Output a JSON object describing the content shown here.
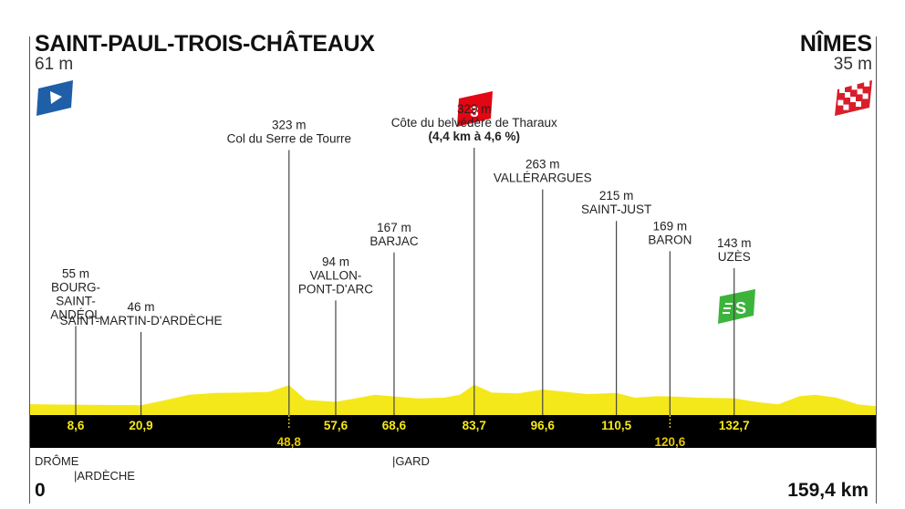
{
  "start": {
    "name": "SAINT-PAUL-TROIS-CHÂTEAUX",
    "altitude": "61 m"
  },
  "finish": {
    "name": "NÎMES",
    "altitude": "35 m"
  },
  "distance_start": "0",
  "distance_total": "159,4 km",
  "departments": [
    {
      "name": "DRÔME",
      "km": 0
    },
    {
      "name": "|ARDÈCHE",
      "km": 8.6
    },
    {
      "name": "|GARD",
      "km": 68.6
    }
  ],
  "colors": {
    "profile": "#f4e81b",
    "band": "#000000",
    "climb_badge": "#e30613",
    "sprint_badge": "#3cb43c",
    "start_flag": "#1f5fa8"
  },
  "icons": [
    "start-flag-icon",
    "finish-flag-icon",
    "climb-category-3-icon",
    "sprint-icon"
  ],
  "chart_data": {
    "type": "area",
    "total_km": 159.4,
    "x_unit": "km",
    "profile": [
      [
        0,
        61
      ],
      [
        8.6,
        55
      ],
      [
        15,
        50
      ],
      [
        20.9,
        46
      ],
      [
        25,
        110
      ],
      [
        30,
        190
      ],
      [
        35,
        215
      ],
      [
        40,
        220
      ],
      [
        45,
        230
      ],
      [
        48.8,
        323
      ],
      [
        52,
        120
      ],
      [
        57.6,
        94
      ],
      [
        62,
        150
      ],
      [
        65,
        190
      ],
      [
        68.6,
        167
      ],
      [
        73,
        140
      ],
      [
        78,
        150
      ],
      [
        81,
        190
      ],
      [
        83.7,
        329
      ],
      [
        87,
        220
      ],
      [
        92,
        210
      ],
      [
        96.6,
        263
      ],
      [
        101,
        230
      ],
      [
        105,
        200
      ],
      [
        110.5,
        215
      ],
      [
        114,
        150
      ],
      [
        118,
        170
      ],
      [
        120.6,
        169
      ],
      [
        126,
        150
      ],
      [
        132.7,
        143
      ],
      [
        137,
        90
      ],
      [
        141,
        60
      ],
      [
        145,
        170
      ],
      [
        148,
        190
      ],
      [
        152,
        150
      ],
      [
        156,
        60
      ],
      [
        159.4,
        35
      ]
    ],
    "waypoints": [
      {
        "km": 8.6,
        "km_label": "8,6",
        "alt": "55 m",
        "name": [
          "BOURG-",
          "SAINT-",
          "ANDÉOL"
        ]
      },
      {
        "km": 20.9,
        "km_label": "20,9",
        "alt": "46 m",
        "name": [
          "SAINT-MARTIN-D'ARDÈCHE"
        ]
      },
      {
        "km": 48.8,
        "km_label": "48,8",
        "alt": "323 m",
        "name": [
          "Col du Serre de Tourre"
        ]
      },
      {
        "km": 57.6,
        "km_label": "57,6",
        "alt": "94 m",
        "name": [
          "VALLON-",
          "PONT-D'ARC"
        ]
      },
      {
        "km": 68.6,
        "km_label": "68,6",
        "alt": "167 m",
        "name": [
          "BARJAC"
        ]
      },
      {
        "km": 83.7,
        "km_label": "83,7",
        "alt": "329 m",
        "name": [
          "Côte du belvédère de Tharaux"
        ],
        "detail": "(4,4 km à 4,6 %)",
        "climb_category": "3"
      },
      {
        "km": 96.6,
        "km_label": "96,6",
        "alt": "263 m",
        "name": [
          "VALLÉRARGUES"
        ]
      },
      {
        "km": 110.5,
        "km_label": "110,5",
        "alt": "215 m",
        "name": [
          "SAINT-JUST"
        ]
      },
      {
        "km": 120.6,
        "km_label": "120,6",
        "alt": "169 m",
        "name": [
          "BARON"
        ]
      },
      {
        "km": 132.7,
        "km_label": "132,7",
        "alt": "143 m",
        "name": [
          "UZÈS"
        ],
        "sprint": "S"
      }
    ]
  }
}
